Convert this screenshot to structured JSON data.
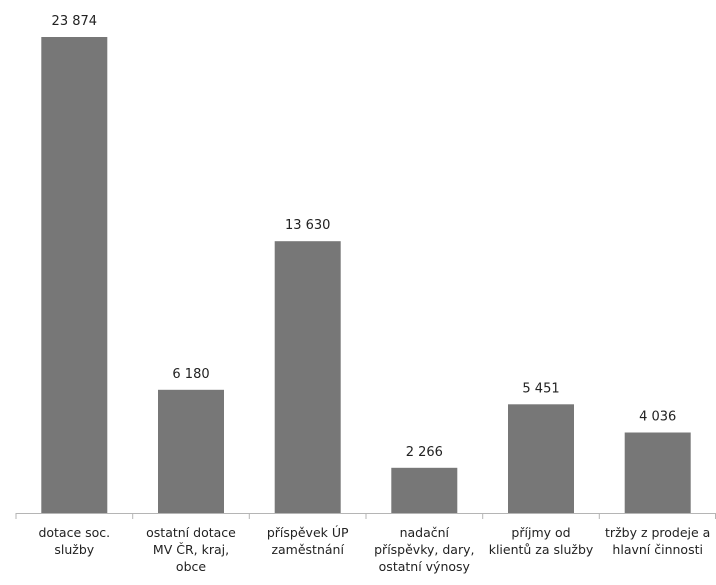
{
  "chart_data": {
    "type": "bar",
    "categories": [
      "dotace soc. služby",
      "ostatní dotace MV ČR, kraj, obce",
      "příspěvek ÚP zaměstnání",
      "nadační příspěvky, dary, ostatní výnosy",
      "příjmy od klientů za služby",
      "tržby z prodeje a hlavní činnosti"
    ],
    "category_lines": [
      [
        "dotace soc.",
        "služby"
      ],
      [
        "ostatní dotace",
        "MV ČR, kraj,",
        "obce"
      ],
      [
        "příspěvek ÚP",
        "zaměstnání"
      ],
      [
        "nadační",
        "příspěvky, dary,",
        "ostatní výnosy"
      ],
      [
        "příjmy od",
        "klientů za služby"
      ],
      [
        "tržby z prodeje a",
        "hlavní činnosti"
      ]
    ],
    "values": [
      23874,
      6180,
      13630,
      2266,
      5451,
      4036
    ],
    "data_labels": [
      "23 874",
      "6 180",
      "13 630",
      "2 266",
      "5 451",
      "4 036"
    ],
    "ylim": [
      0,
      23874
    ],
    "grid": false,
    "legend": "none",
    "title": "",
    "xlabel": "",
    "ylabel": "",
    "bar_color": "#777777",
    "axis_color": "#b5b5b5"
  }
}
